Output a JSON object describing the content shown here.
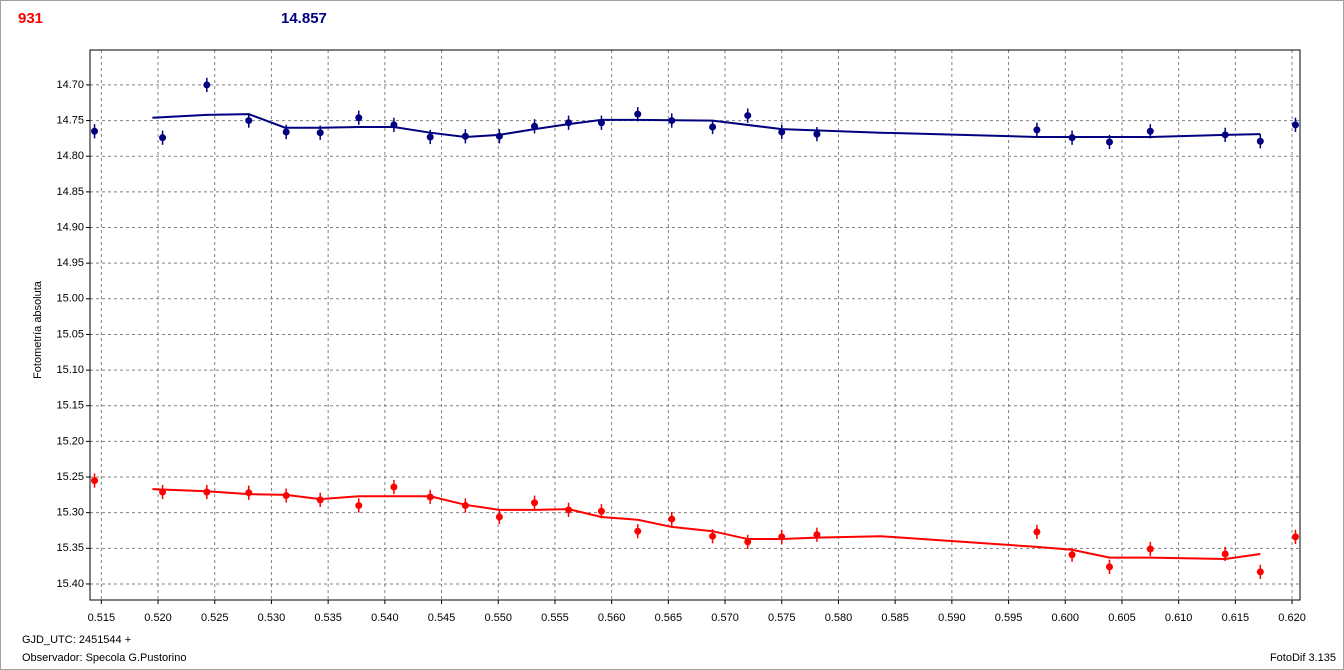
{
  "chart_data": {
    "type": "scatter",
    "readouts": [
      {
        "text": "931",
        "color": "#ff0000"
      },
      {
        "text": "14.857",
        "color": "#000080"
      }
    ],
    "y_label": "Fotometría absoluta",
    "footer_left": [
      "GJD_UTC: 2451544 +",
      "Observador: Specola G.Pustorino"
    ],
    "footer_right": "FotoDif 3.135",
    "xlim": [
      0.514,
      0.6207
    ],
    "ylim": [
      15.4225,
      14.651
    ],
    "grid": true,
    "xticks": [
      0.515,
      {
        "value": 0.52,
        "label": "0.520"
      },
      0.525,
      {
        "value": 0.53,
        "label": "0.530"
      },
      0.535,
      {
        "value": 0.54,
        "label": "0.540"
      },
      0.545,
      {
        "value": 0.55,
        "label": "0.550"
      },
      0.555,
      {
        "value": 0.56,
        "label": "0.560"
      },
      0.565,
      {
        "value": 0.57,
        "label": "0.570"
      },
      0.575,
      {
        "value": 0.58,
        "label": "0.580"
      },
      0.585,
      {
        "value": 0.59,
        "label": "0.590"
      },
      0.595,
      {
        "value": 0.6,
        "label": "0.600"
      },
      0.605,
      {
        "value": 0.61,
        "label": "0.610"
      },
      0.615,
      {
        "value": 0.62,
        "label": "0.620"
      }
    ],
    "yticks": [
      {
        "value": 14.7,
        "label": "14.70"
      },
      14.75,
      {
        "value": 14.8,
        "label": "14.80"
      },
      14.85,
      {
        "value": 14.9,
        "label": "14.90"
      },
      14.95,
      {
        "value": 15,
        "label": "15.00"
      },
      15.05,
      {
        "value": 15.1,
        "label": "15.10"
      },
      15.15,
      {
        "value": 15.2,
        "label": "15.20"
      },
      15.25,
      {
        "value": 15.3,
        "label": "15.30"
      },
      15.35,
      {
        "value": 15.4,
        "label": "15.40"
      }
    ],
    "series": [
      {
        "color": "#000080",
        "error": 0.01,
        "x": [
          0.5144,
          0.5204,
          0.5243,
          0.528,
          0.5313,
          0.5343,
          0.5377,
          0.5408,
          0.544,
          0.5471,
          0.5501,
          0.5532,
          0.5562,
          0.5591,
          0.5623,
          0.5653,
          0.5689,
          0.572,
          0.575,
          0.5781,
          0.5975,
          0.6006,
          0.6039,
          0.6075,
          0.6141,
          0.6172,
          0.6203
        ],
        "values": [
          14.765,
          14.774,
          14.7,
          14.75,
          14.766,
          14.767,
          14.746,
          14.756,
          14.773,
          14.772,
          14.772,
          14.758,
          14.753,
          14.753,
          14.741,
          14.75,
          14.759,
          14.743,
          14.766,
          14.769,
          14.763,
          14.774,
          14.78,
          14.765,
          14.77,
          14.779,
          14.756
        ],
        "fit_x": [
          0.5195,
          0.5243,
          0.528,
          0.5312,
          0.5343,
          0.5377,
          0.5408,
          0.544,
          0.5471,
          0.5501,
          0.5532,
          0.5562,
          0.5591,
          0.5623,
          0.5689,
          0.575,
          0.5837,
          0.5975,
          0.6075,
          0.6141,
          0.6172
        ],
        "fit_values": [
          14.746,
          14.742,
          14.741,
          14.76,
          14.76,
          14.759,
          14.759,
          14.767,
          14.773,
          14.77,
          14.762,
          14.755,
          14.749,
          14.749,
          14.75,
          14.762,
          14.767,
          14.773,
          14.773,
          14.77,
          14.769
        ]
      },
      {
        "color": "#ff0000",
        "error": 0.01,
        "x": [
          0.5144,
          0.5204,
          0.5243,
          0.528,
          0.5313,
          0.5343,
          0.5377,
          0.5408,
          0.544,
          0.5471,
          0.5501,
          0.5532,
          0.5562,
          0.5591,
          0.5623,
          0.5653,
          0.5689,
          0.572,
          0.575,
          0.5781,
          0.5975,
          0.6006,
          0.6039,
          0.6075,
          0.6141,
          0.6172,
          0.6203
        ],
        "values": [
          15.255,
          15.271,
          15.271,
          15.272,
          15.276,
          15.282,
          15.29,
          15.264,
          15.278,
          15.29,
          15.306,
          15.286,
          15.296,
          15.298,
          15.326,
          15.309,
          15.333,
          15.341,
          15.334,
          15.331,
          15.327,
          15.359,
          15.376,
          15.351,
          15.358,
          15.383,
          15.334
        ],
        "fit_x": [
          0.5195,
          0.5243,
          0.528,
          0.5313,
          0.5343,
          0.5377,
          0.5408,
          0.544,
          0.5471,
          0.5501,
          0.5532,
          0.5562,
          0.5591,
          0.5623,
          0.5653,
          0.5689,
          0.572,
          0.575,
          0.5781,
          0.5837,
          0.5975,
          0.6006,
          0.6039,
          0.6075,
          0.6141,
          0.6172
        ],
        "fit_values": [
          15.267,
          15.27,
          15.274,
          15.275,
          15.281,
          15.277,
          15.277,
          15.277,
          15.289,
          15.296,
          15.296,
          15.295,
          15.306,
          15.31,
          15.32,
          15.326,
          15.337,
          15.337,
          15.335,
          15.333,
          15.348,
          15.352,
          15.363,
          15.363,
          15.365,
          15.358
        ]
      }
    ]
  }
}
